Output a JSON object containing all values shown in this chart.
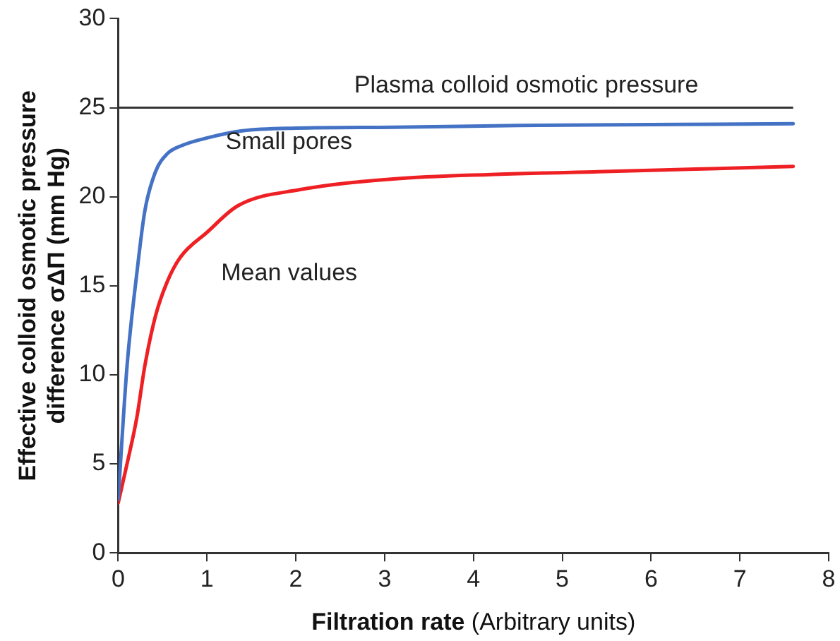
{
  "chart_data": {
    "type": "line",
    "xlabel": "Filtration rate (Arbitrary units)",
    "ylabel": "Effective colloid osmotic pressure\ndifference σΔΠ (mm Hg)",
    "xlim": [
      0,
      8
    ],
    "xticks": [
      0,
      1,
      2,
      3,
      4,
      5,
      6,
      7,
      8
    ],
    "ylim": [
      0,
      30
    ],
    "yticks": [
      0,
      5,
      10,
      15,
      20,
      25,
      30
    ],
    "grid": false,
    "legend": false,
    "marker": "none",
    "line_style": "solid",
    "ref_lines": [
      {
        "axis": "y",
        "value": 25,
        "label": "Plasma colloid osmotic pressure",
        "color": "#333333"
      }
    ],
    "series": [
      {
        "name": "Small pores",
        "color": "#4472c4",
        "x": [
          0,
          0.1,
          0.21,
          0.3,
          0.42,
          0.55,
          0.73,
          1.0,
          1.4,
          2.0,
          3.1,
          4.5,
          6.0,
          7.6
        ],
        "values": [
          3.0,
          10.5,
          15.7,
          19.2,
          21.4,
          22.4,
          22.9,
          23.3,
          23.7,
          23.85,
          23.9,
          24.0,
          24.05,
          24.1
        ]
      },
      {
        "name": "Mean values",
        "color": "#ee2024",
        "x": [
          0,
          0.1,
          0.21,
          0.3,
          0.42,
          0.55,
          0.7,
          1.0,
          1.35,
          2.05,
          3.1,
          4.2,
          5.4,
          6.5,
          7.6
        ],
        "values": [
          2.8,
          5.0,
          7.6,
          10.5,
          13.3,
          15.2,
          16.6,
          18.0,
          19.5,
          20.4,
          21.0,
          21.25,
          21.4,
          21.55,
          21.7
        ]
      }
    ]
  }
}
